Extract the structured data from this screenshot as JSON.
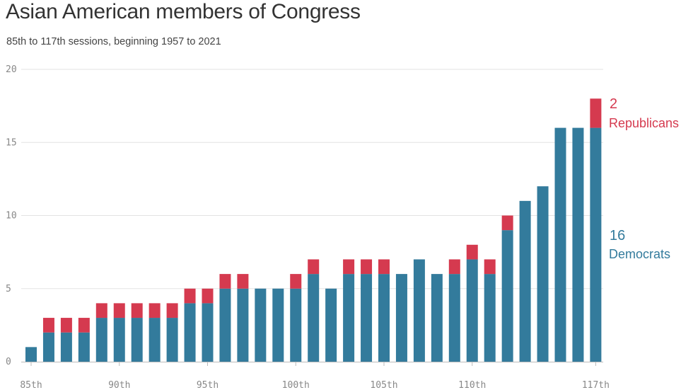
{
  "header": {
    "title": "Asian American members of Congress",
    "subtitle": "85th to 117th sessions, beginning 1957 to 2021"
  },
  "colors": {
    "democrats": "#337b9c",
    "republicans": "#d53a4f",
    "grid": "#e3e3e3",
    "axis": "#bbbbbb"
  },
  "chart_data": {
    "type": "bar",
    "stacked": true,
    "categories": [
      "85th",
      "86th",
      "87th",
      "88th",
      "89th",
      "90th",
      "91st",
      "92nd",
      "93rd",
      "94th",
      "95th",
      "96th",
      "97th",
      "98th",
      "99th",
      "100th",
      "101st",
      "102nd",
      "103rd",
      "104th",
      "105th",
      "106th",
      "107th",
      "108th",
      "109th",
      "110th",
      "111th",
      "112th",
      "113th",
      "114th",
      "115th",
      "116th",
      "117th"
    ],
    "x_tick_labels": [
      "85th",
      "90th",
      "95th",
      "100th",
      "105th",
      "110th",
      "117th"
    ],
    "series": [
      {
        "name": "Democrats",
        "color": "#337b9c",
        "values": [
          1,
          2,
          2,
          2,
          3,
          3,
          3,
          3,
          3,
          4,
          4,
          5,
          5,
          5,
          5,
          5,
          6,
          5,
          6,
          6,
          6,
          6,
          7,
          6,
          6,
          7,
          6,
          9,
          11,
          12,
          16,
          16,
          16
        ]
      },
      {
        "name": "Republicans",
        "color": "#d53a4f",
        "values": [
          0,
          1,
          1,
          1,
          1,
          1,
          1,
          1,
          1,
          1,
          1,
          1,
          1,
          0,
          0,
          1,
          1,
          0,
          1,
          1,
          1,
          0,
          0,
          0,
          1,
          1,
          1,
          1,
          0,
          0,
          0,
          0,
          2
        ]
      }
    ],
    "ylim": [
      0,
      20
    ],
    "yticks": [
      0,
      5,
      10,
      15,
      20
    ],
    "grid": true,
    "annotations": {
      "republicans": {
        "value": "2",
        "label": "Republicans"
      },
      "democrats": {
        "value": "16",
        "label": "Democrats"
      }
    }
  }
}
